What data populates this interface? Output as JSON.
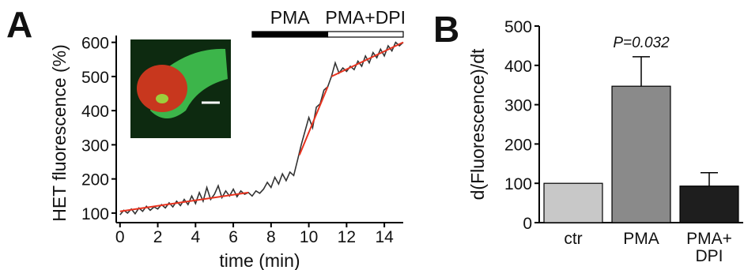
{
  "chart_data": [
    {
      "type": "line",
      "panel_label": "A",
      "xlabel": "time (min)",
      "ylabel": "HET fluorescence (%)",
      "xlim": [
        -0.2,
        15
      ],
      "ylim": [
        72,
        620
      ],
      "xticks": [
        0,
        2,
        4,
        6,
        8,
        10,
        12,
        14
      ],
      "yticks": [
        100,
        200,
        300,
        400,
        500,
        600
      ],
      "annotations": [
        {
          "text": "PMA",
          "x": [
            7,
            11
          ],
          "color": "#000000"
        },
        {
          "text": "PMA+DPI",
          "x": [
            11,
            15
          ],
          "color": "#ffffff"
        }
      ],
      "series": [
        {
          "color": "#333333",
          "x": [
            0,
            0.2,
            0.4,
            0.6,
            0.8,
            1,
            1.2,
            1.4,
            1.6,
            1.8,
            2,
            2.2,
            2.4,
            2.6,
            2.8,
            3,
            3.2,
            3.4,
            3.6,
            3.8,
            4,
            4.2,
            4.4,
            4.6,
            4.8,
            5,
            5.2,
            5.4,
            5.6,
            5.8,
            6,
            6.2,
            6.4,
            6.6,
            6.8,
            7,
            7.2,
            7.4,
            7.6,
            7.8,
            8,
            8.2,
            8.4,
            8.6,
            8.8,
            9,
            9.2,
            9.4,
            9.6,
            9.8,
            10,
            10.2,
            10.4,
            10.6,
            10.8,
            11,
            11.2,
            11.4,
            11.6,
            11.8,
            12,
            12.2,
            12.4,
            12.6,
            12.8,
            13,
            13.2,
            13.4,
            13.6,
            13.8,
            14,
            14.2,
            14.4,
            14.6,
            14.8,
            15
          ],
          "values": [
            95,
            108,
            100,
            112,
            98,
            115,
            105,
            120,
            108,
            118,
            112,
            125,
            115,
            130,
            118,
            135,
            122,
            140,
            125,
            150,
            128,
            160,
            135,
            175,
            140,
            155,
            180,
            145,
            165,
            150,
            170,
            148,
            165,
            155,
            160,
            150,
            165,
            158,
            170,
            190,
            175,
            205,
            185,
            215,
            195,
            220,
            210,
            255,
            300,
            340,
            380,
            350,
            410,
            420,
            460,
            470,
            500,
            540,
            510,
            525,
            515,
            530,
            520,
            545,
            530,
            560,
            540,
            570,
            555,
            580,
            560,
            590,
            575,
            600,
            590,
            600
          ]
        },
        {
          "color": "#e8331f",
          "x": [
            0,
            6.8
          ],
          "values": [
            105,
            160
          ]
        },
        {
          "color": "#e8331f",
          "x": [
            9.5,
            11
          ],
          "values": [
            270,
            470
          ]
        },
        {
          "color": "#e8331f",
          "x": [
            11.2,
            15
          ],
          "values": [
            500,
            600
          ]
        }
      ]
    },
    {
      "type": "bar",
      "panel_label": "B",
      "ylabel": "d(Fluorescence)/dt",
      "categories": [
        "ctr",
        "PMA",
        "PMA+\nDPI"
      ],
      "values": [
        100,
        347,
        93
      ],
      "errors": [
        null,
        75,
        34
      ],
      "colors": [
        "#c8c8c8",
        "#8a8a8a",
        "#1e1e1e"
      ],
      "annotations": [
        {
          "text": "P=0.032",
          "category": 1
        }
      ],
      "ylim": [
        0,
        500
      ],
      "yticks": [
        0,
        100,
        200,
        300,
        400,
        500
      ]
    }
  ]
}
